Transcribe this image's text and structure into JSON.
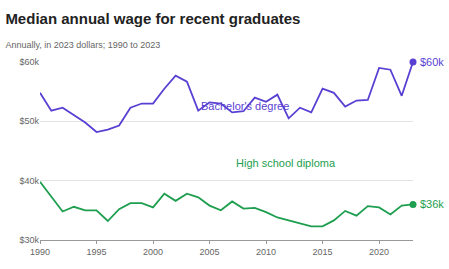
{
  "chart_data": {
    "type": "line",
    "title": "Median annual wage for recent graduates",
    "subtitle": "Annually, in 2023 dollars; 1990 to 2023",
    "x": [
      1990,
      1991,
      1992,
      1993,
      1994,
      1995,
      1996,
      1997,
      1998,
      1999,
      2000,
      2001,
      2002,
      2003,
      2004,
      2005,
      2006,
      2007,
      2008,
      2009,
      2010,
      2011,
      2012,
      2013,
      2014,
      2015,
      2016,
      2017,
      2018,
      2019,
      2020,
      2021,
      2022,
      2023
    ],
    "series": [
      {
        "name": "High school diploma",
        "color": "#1e9e4f",
        "marker": "last",
        "values": [
          39800,
          37200,
          34800,
          35600,
          35000,
          35000,
          33200,
          35200,
          36200,
          36200,
          35500,
          37800,
          36600,
          37800,
          37200,
          35800,
          35000,
          36500,
          35300,
          35400,
          34700,
          33800,
          33300,
          32800,
          32300,
          32300,
          33300,
          34900,
          34100,
          35700,
          35500,
          34300,
          35800,
          36000
        ],
        "value_labels": [
          null,
          null,
          null,
          null,
          null,
          null,
          null,
          null,
          null,
          null,
          null,
          null,
          null,
          null,
          null,
          null,
          null,
          null,
          null,
          null,
          null,
          null,
          null,
          null,
          null,
          null,
          null,
          null,
          null,
          null,
          null,
          null,
          null,
          "$36k"
        ]
      },
      {
        "name": "Bachelor's degree",
        "color": "#5a3fd3",
        "marker": "last",
        "values": [
          54800,
          51800,
          52300,
          51000,
          49800,
          48200,
          48600,
          49300,
          52300,
          53000,
          53000,
          55500,
          57700,
          56700,
          51800,
          53200,
          53000,
          51500,
          51700,
          54000,
          53300,
          54500,
          50500,
          52300,
          51500,
          55500,
          54800,
          52500,
          53500,
          53600,
          59000,
          58700,
          54300,
          60000
        ],
        "value_labels": [
          null,
          null,
          null,
          null,
          null,
          null,
          null,
          null,
          null,
          null,
          null,
          null,
          null,
          null,
          null,
          null,
          null,
          null,
          null,
          null,
          null,
          null,
          null,
          null,
          null,
          null,
          null,
          null,
          null,
          null,
          null,
          null,
          null,
          "$60k"
        ]
      }
    ],
    "xlim": [
      1990,
      2023
    ],
    "xticks": [
      1990,
      1995,
      2000,
      2005,
      2010,
      2015,
      2020
    ],
    "ylim": [
      30000,
      60000
    ],
    "yticks": [
      {
        "value": 30000,
        "label": "$30k"
      },
      {
        "value": 40000,
        "label": "$40k"
      },
      {
        "value": 50000,
        "label": "$50k"
      },
      {
        "value": 60000,
        "label": "$60k"
      }
    ],
    "grid": true
  }
}
